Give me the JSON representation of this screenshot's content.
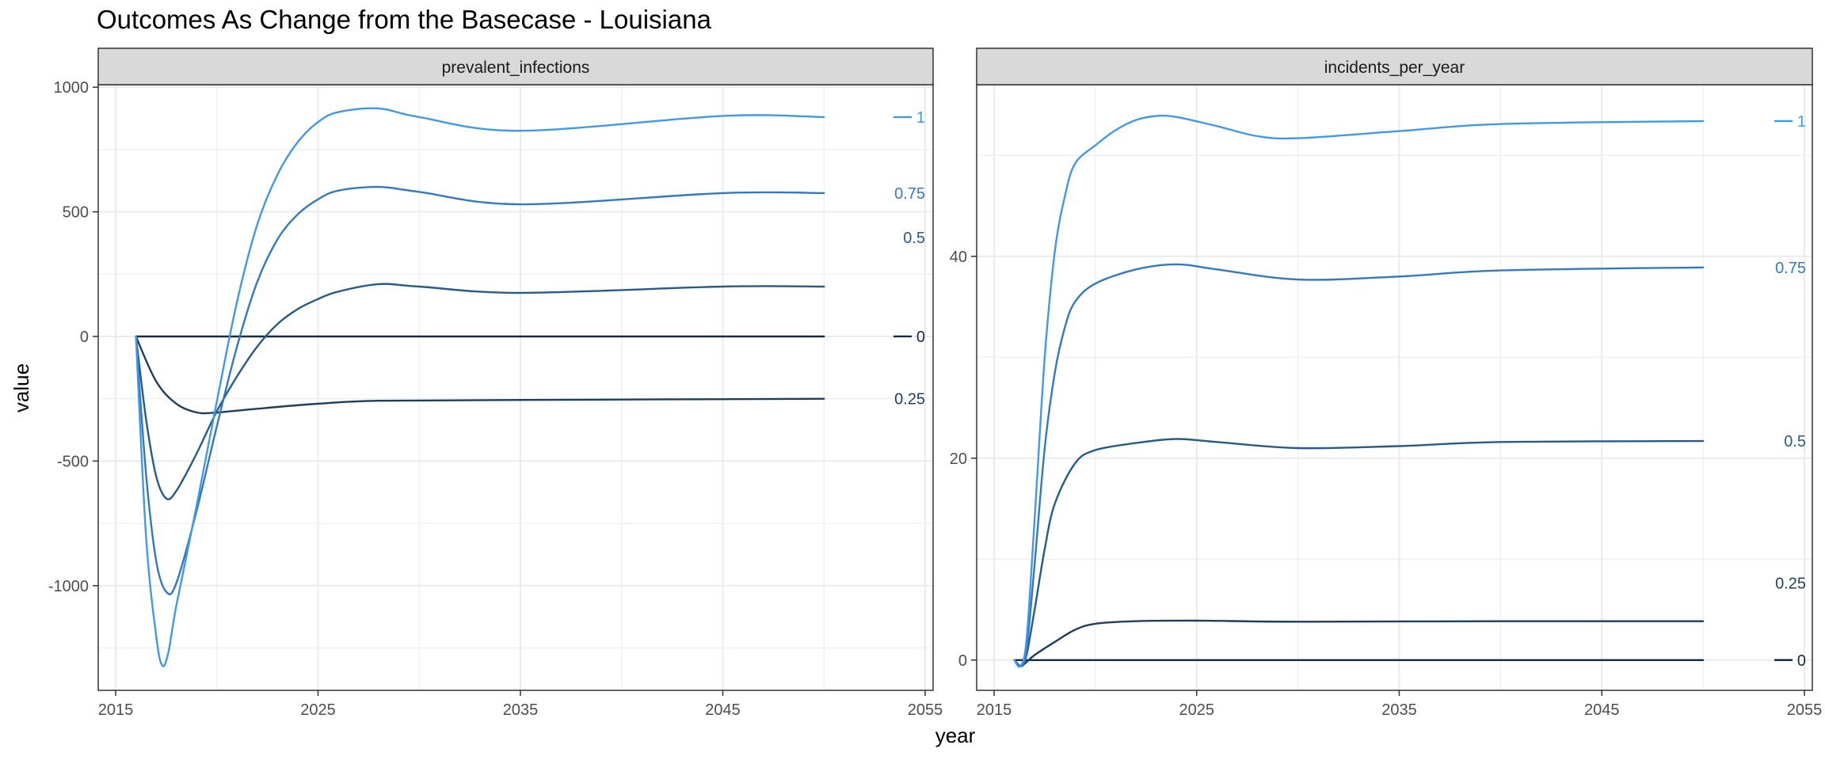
{
  "title": "Outcomes As Change from the Basecase - Louisiana",
  "chart_data": {
    "type": "line",
    "title": "Outcomes As Change from the Basecase - Louisiana",
    "xlabel": "year",
    "ylabel": "value",
    "grid": true,
    "x_ticks": [
      "2015",
      "2025",
      "2035",
      "2045",
      "2055"
    ],
    "xlim": [
      2015,
      2055
    ],
    "colors": {
      "0": "#132b43",
      "0.25": "#1d3f5e",
      "0.5": "#275b87",
      "0.75": "#3478bd",
      "1": "#4298e8",
      "strip_fill": "#d9d9d9",
      "grid": "#ebebeb"
    },
    "panels": [
      {
        "strip": "prevalent_infections",
        "ylim": [
          -1420,
          1010
        ],
        "y_ticks": [
          -1000,
          -500,
          0,
          500,
          1000
        ],
        "y_tick_labels": [
          "-1000",
          "-500",
          "0",
          "500",
          "1000"
        ],
        "series": [
          {
            "name": "0",
            "x": [
              2016,
              2050
            ],
            "values": [
              0,
              0
            ]
          },
          {
            "name": "0.25",
            "x": [
              2016,
              2017,
              2018,
              2019,
              2020,
              2022,
              2025,
              2028,
              2035,
              2050
            ],
            "values": [
              0,
              -180,
              -270,
              -305,
              -305,
              -290,
              -270,
              -258,
              -255,
              -250
            ]
          },
          {
            "name": "0.5",
            "x": [
              2016,
              2016.5,
              2017,
              2017.5,
              2018,
              2019,
              2020,
              2021,
              2022,
              2023,
              2024,
              2025,
              2026,
              2028,
              2030,
              2035,
              2045,
              2050
            ],
            "values": [
              0,
              -330,
              -560,
              -650,
              -620,
              -470,
              -300,
              -160,
              -40,
              50,
              110,
              150,
              180,
              210,
              200,
              175,
              200,
              200
            ]
          },
          {
            "name": "0.75",
            "x": [
              2016,
              2016.5,
              2017,
              2017.5,
              2018,
              2019,
              2020,
              2021,
              2022,
              2023,
              2024,
              2025,
              2026,
              2028,
              2030,
              2035,
              2045,
              2050
            ],
            "values": [
              0,
              -550,
              -900,
              -1025,
              -990,
              -700,
              -360,
              -40,
              220,
              390,
              490,
              550,
              585,
              600,
              580,
              530,
              575,
              575
            ]
          },
          {
            "name": "1",
            "x": [
              2016,
              2016.5,
              2017,
              2017.3,
              2017.6,
              2018,
              2019,
              2020,
              2021,
              2022,
              2023,
              2024,
              2025,
              2026,
              2028,
              2030,
              2035,
              2045,
              2050
            ],
            "values": [
              0,
              -800,
              -1200,
              -1320,
              -1270,
              -1080,
              -680,
              -260,
              140,
              450,
              650,
              780,
              860,
              900,
              915,
              880,
              825,
              885,
              880
            ]
          }
        ],
        "end_labels": [
          "1",
          "0.75",
          "0.5",
          "0",
          "0.25"
        ]
      },
      {
        "strip": "incidents_per_year",
        "ylim": [
          -3,
          57
        ],
        "y_ticks": [
          0,
          20,
          40
        ],
        "y_tick_labels": [
          "0",
          "20",
          "40"
        ],
        "series": [
          {
            "name": "0",
            "x": [
              2016,
              2050
            ],
            "values": [
              0,
              0
            ]
          },
          {
            "name": "0.25",
            "x": [
              2016,
              2016.3,
              2016.6,
              2017,
              2018,
              2019,
              2020,
              2022,
              2025,
              2030,
              2040,
              2050
            ],
            "values": [
              0,
              -0.6,
              -0.2,
              0.5,
              1.8,
              3.0,
              3.6,
              3.85,
              3.9,
              3.8,
              3.85,
              3.85
            ]
          },
          {
            "name": "0.5",
            "x": [
              2016,
              2016.3,
              2016.6,
              2017,
              2017.5,
              2018,
              2019,
              2020,
              2022,
              2024,
              2026,
              2030,
              2035,
              2040,
              2050
            ],
            "values": [
              0,
              -0.6,
              0.5,
              5,
              11,
              15.5,
              19.5,
              20.8,
              21.5,
              21.9,
              21.6,
              21,
              21.2,
              21.6,
              21.7
            ]
          },
          {
            "name": "0.75",
            "x": [
              2016,
              2016.3,
              2016.6,
              2017,
              2017.5,
              2018,
              2018.5,
              2019,
              2020,
              2022,
              2024,
              2026,
              2030,
              2035,
              2040,
              2050
            ],
            "values": [
              0,
              -0.6,
              1,
              9.5,
              21,
              28.5,
              33,
              35.5,
              37.3,
              38.7,
              39.2,
              38.7,
              37.7,
              38,
              38.6,
              38.9
            ]
          },
          {
            "name": "1",
            "x": [
              2016,
              2016.3,
              2016.6,
              2017,
              2017.5,
              2018,
              2018.5,
              2019,
              2020,
              2021,
              2022,
              2023,
              2024,
              2026,
              2028,
              2030,
              2035,
              2040,
              2050
            ],
            "values": [
              0,
              -0.6,
              2,
              14,
              30,
              40.5,
              46,
              49.2,
              51,
              52.5,
              53.5,
              53.9,
              53.8,
              52.9,
              51.9,
              51.7,
              52.4,
              53.1,
              53.4
            ]
          }
        ],
        "end_labels": [
          "1",
          "0.75",
          "0.5",
          "0.25",
          "0"
        ]
      }
    ]
  }
}
